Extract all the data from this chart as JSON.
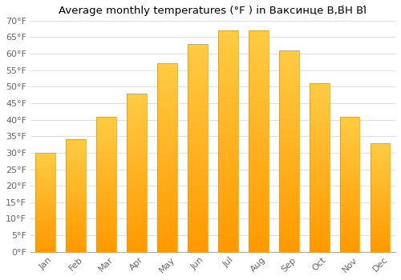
{
  "title": "Average monthly temperatures (°F ) in Ваксинце В,В́Н ВІ́",
  "months": [
    "Jan",
    "Feb",
    "Mar",
    "Apr",
    "May",
    "Jun",
    "Jul",
    "Aug",
    "Sep",
    "Oct",
    "Nov",
    "Dec"
  ],
  "values": [
    30,
    34,
    41,
    48,
    57,
    63,
    67,
    67,
    61,
    51,
    41,
    33
  ],
  "bar_color_top": "#FFC04C",
  "bar_color_bottom": "#FF9900",
  "bar_edge_color": "#E8930A",
  "ylim": [
    0,
    70
  ],
  "yticks": [
    0,
    5,
    10,
    15,
    20,
    25,
    30,
    35,
    40,
    45,
    50,
    55,
    60,
    65,
    70
  ],
  "ytick_labels": [
    "0°F",
    "5°F",
    "10°F",
    "15°F",
    "20°F",
    "25°F",
    "30°F",
    "35°F",
    "40°F",
    "45°F",
    "50°F",
    "55°F",
    "60°F",
    "65°F",
    "70°F"
  ],
  "background_color": "#ffffff",
  "grid_color": "#e0e0e0",
  "title_fontsize": 9.5,
  "tick_fontsize": 8,
  "bar_width": 0.65
}
